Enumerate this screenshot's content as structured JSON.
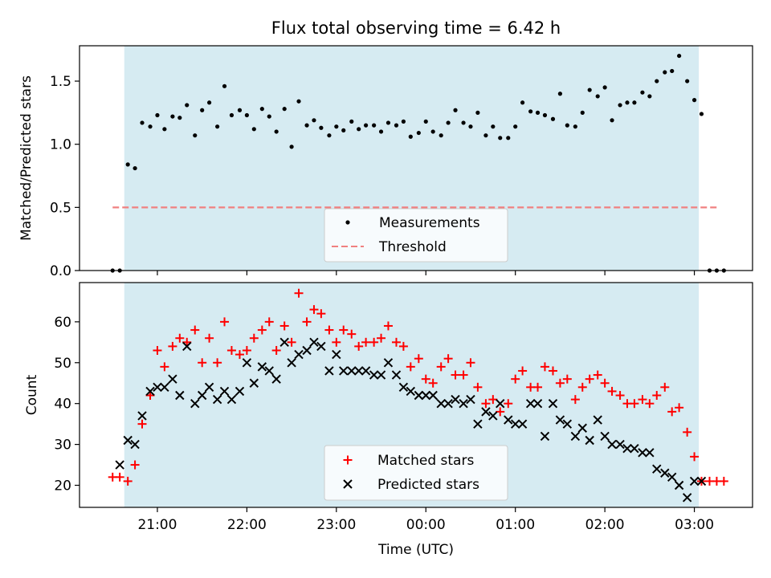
{
  "chart_data": {
    "title": "Flux total observing time = 6.42 h",
    "xlabel": "Time (UTC)",
    "x_ticks": [
      "21:00",
      "22:00",
      "23:00",
      "00:00",
      "01:00",
      "02:00",
      "03:00"
    ],
    "x_tick_hours": [
      21,
      22,
      23,
      24,
      25,
      26,
      27
    ],
    "xlim": [
      20.13,
      27.65
    ],
    "shaded_region": {
      "x_start": 20.63,
      "x_end": 27.05,
      "color": "#add8e6"
    },
    "panels": [
      {
        "type": "scatter",
        "ylabel": "Matched/Predicted stars",
        "ylim": [
          0,
          1.78
        ],
        "y_ticks": [
          "0.0",
          "0.5",
          "1.0",
          "1.5"
        ],
        "y_tick_values": [
          0,
          0.5,
          1.0,
          1.5
        ],
        "threshold": {
          "name": "Threshold",
          "value": 0.5,
          "x_start": 20.5,
          "x_end": 27.27,
          "color": "#f08080"
        },
        "legend": [
          "Measurements",
          "Threshold"
        ],
        "series": [
          {
            "name": "Measurements",
            "color": "#000000",
            "marker": "dot",
            "x": [
              20.5,
              20.58,
              20.67,
              20.75,
              20.83,
              20.92,
              21.0,
              21.08,
              21.17,
              21.25,
              21.33,
              21.42,
              21.5,
              21.58,
              21.67,
              21.75,
              21.83,
              21.92,
              22.0,
              22.08,
              22.17,
              22.25,
              22.33,
              22.42,
              22.5,
              22.58,
              22.67,
              22.75,
              22.83,
              22.92,
              23.0,
              23.08,
              23.17,
              23.25,
              23.33,
              23.42,
              23.5,
              23.58,
              23.67,
              23.75,
              23.83,
              23.92,
              24.0,
              24.08,
              24.17,
              24.25,
              24.33,
              24.42,
              24.5,
              24.58,
              24.67,
              24.75,
              24.83,
              24.92,
              25.0,
              25.08,
              25.17,
              25.25,
              25.33,
              25.42,
              25.5,
              25.58,
              25.67,
              25.75,
              25.83,
              25.92,
              26.0,
              26.08,
              26.17,
              26.25,
              26.33,
              26.42,
              26.5,
              26.58,
              26.67,
              26.75,
              26.83,
              26.92,
              27.0,
              27.08,
              27.17,
              27.25,
              27.33
            ],
            "y": [
              0.0,
              0.0,
              0.84,
              0.81,
              1.17,
              1.14,
              1.23,
              1.12,
              1.22,
              1.21,
              1.31,
              1.07,
              1.27,
              1.33,
              1.14,
              1.46,
              1.23,
              1.27,
              1.23,
              1.12,
              1.28,
              1.22,
              1.1,
              1.28,
              0.98,
              1.34,
              1.15,
              1.19,
              1.13,
              1.07,
              1.14,
              1.11,
              1.18,
              1.12,
              1.15,
              1.15,
              1.1,
              1.17,
              1.15,
              1.18,
              1.06,
              1.09,
              1.18,
              1.1,
              1.07,
              1.17,
              1.27,
              1.17,
              1.14,
              1.25,
              1.07,
              1.14,
              1.05,
              1.05,
              1.14,
              1.33,
              1.26,
              1.25,
              1.23,
              1.2,
              1.4,
              1.15,
              1.14,
              1.25,
              1.43,
              1.38,
              1.45,
              1.19,
              1.31,
              1.33,
              1.33,
              1.41,
              1.38,
              1.5,
              1.57,
              1.58,
              1.7,
              1.5,
              1.35,
              1.24,
              0.0,
              0.0,
              0.0
            ]
          }
        ]
      },
      {
        "type": "scatter",
        "ylabel": "Count",
        "ylim": [
          14.6,
          69.6
        ],
        "y_ticks": [
          "20",
          "30",
          "40",
          "50",
          "60"
        ],
        "y_tick_values": [
          20,
          30,
          40,
          50,
          60
        ],
        "legend": [
          "Matched stars",
          "Predicted stars"
        ],
        "series": [
          {
            "name": "Matched stars",
            "color": "#ff0000",
            "marker": "plus",
            "x": [
              20.5,
              20.58,
              20.67,
              20.75,
              20.83,
              20.92,
              21.0,
              21.08,
              21.17,
              21.25,
              21.33,
              21.42,
              21.5,
              21.58,
              21.67,
              21.75,
              21.83,
              21.92,
              22.0,
              22.08,
              22.17,
              22.25,
              22.33,
              22.42,
              22.5,
              22.58,
              22.67,
              22.75,
              22.83,
              22.92,
              23.0,
              23.08,
              23.17,
              23.25,
              23.33,
              23.42,
              23.5,
              23.58,
              23.67,
              23.75,
              23.83,
              23.92,
              24.0,
              24.08,
              24.17,
              24.25,
              24.33,
              24.42,
              24.5,
              24.58,
              24.67,
              24.75,
              24.83,
              24.92,
              25.0,
              25.08,
              25.17,
              25.25,
              25.33,
              25.42,
              25.5,
              25.58,
              25.67,
              25.75,
              25.83,
              25.92,
              26.0,
              26.08,
              26.17,
              26.25,
              26.33,
              26.42,
              26.5,
              26.58,
              26.67,
              26.75,
              26.83,
              26.92,
              27.0,
              27.08,
              27.17,
              27.25,
              27.33
            ],
            "y": [
              22,
              22,
              21,
              25,
              35,
              42,
              53,
              49,
              54,
              56,
              55,
              58,
              50,
              56,
              50,
              60,
              53,
              52,
              53,
              56,
              58,
              60,
              53,
              59,
              55,
              67,
              60,
              63,
              62,
              58,
              55,
              58,
              57,
              54,
              55,
              55,
              56,
              59,
              55,
              54,
              49,
              51,
              46,
              45,
              49,
              51,
              47,
              47,
              50,
              44,
              40,
              41,
              38,
              40,
              46,
              48,
              44,
              44,
              49,
              48,
              45,
              46,
              41,
              44,
              46,
              47,
              45,
              43,
              42,
              40,
              40,
              41,
              40,
              42,
              44,
              38,
              39,
              33,
              27,
              21,
              21,
              21,
              21
            ]
          },
          {
            "name": "Predicted stars",
            "color": "#000000",
            "marker": "x",
            "x": [
              20.58,
              20.67,
              20.75,
              20.83,
              20.92,
              21.0,
              21.08,
              21.17,
              21.25,
              21.33,
              21.42,
              21.5,
              21.58,
              21.67,
              21.75,
              21.83,
              21.92,
              22.0,
              22.08,
              22.17,
              22.25,
              22.33,
              22.42,
              22.5,
              22.58,
              22.67,
              22.75,
              22.83,
              22.92,
              23.0,
              23.08,
              23.17,
              23.25,
              23.33,
              23.42,
              23.5,
              23.58,
              23.67,
              23.75,
              23.83,
              23.92,
              24.0,
              24.08,
              24.17,
              24.25,
              24.33,
              24.42,
              24.5,
              24.58,
              24.67,
              24.75,
              24.83,
              24.92,
              25.0,
              25.08,
              25.17,
              25.25,
              25.33,
              25.42,
              25.5,
              25.58,
              25.67,
              25.75,
              25.83,
              25.92,
              26.0,
              26.08,
              26.17,
              26.25,
              26.33,
              26.42,
              26.5,
              26.58,
              26.67,
              26.75,
              26.83,
              26.92,
              27.0,
              27.08
            ],
            "y": [
              25,
              31,
              30,
              37,
              43,
              44,
              44,
              46,
              42,
              54,
              40,
              42,
              44,
              41,
              43,
              41,
              43,
              50,
              45,
              49,
              48,
              46,
              55,
              50,
              52,
              53,
              55,
              54,
              48,
              52,
              48,
              48,
              48,
              48,
              47,
              47,
              50,
              47,
              44,
              43,
              42,
              42,
              42,
              40,
              40,
              41,
              40,
              41,
              35,
              38,
              37,
              40,
              36,
              35,
              35,
              40,
              40,
              32,
              40,
              36,
              35,
              32,
              34,
              31,
              36,
              32,
              30,
              30,
              29,
              29,
              28,
              28,
              24,
              23,
              22,
              20,
              17,
              21,
              21
            ]
          }
        ]
      }
    ]
  }
}
